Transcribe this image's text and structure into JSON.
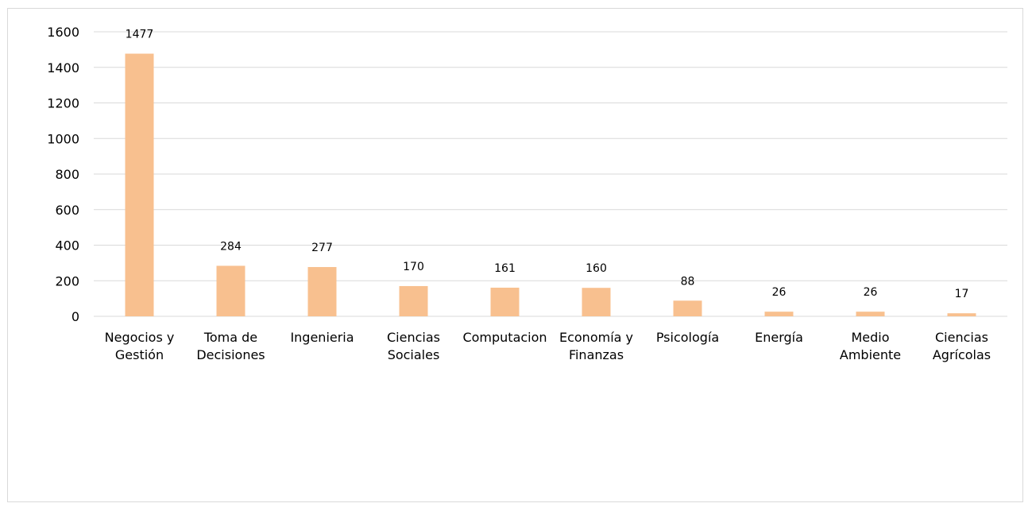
{
  "chart_data": {
    "type": "bar",
    "categories": [
      [
        "Negocios y",
        "Gestión"
      ],
      [
        "Toma de",
        "Decisiones"
      ],
      [
        "Ingenieria"
      ],
      [
        "Ciencias",
        "Sociales"
      ],
      [
        "Computacion"
      ],
      [
        "Economía y",
        "Finanzas"
      ],
      [
        "Psicología"
      ],
      [
        "Energía"
      ],
      [
        "Medio",
        "Ambiente"
      ],
      [
        "Ciencias",
        "Agrícolas"
      ]
    ],
    "values": [
      1477,
      284,
      277,
      170,
      161,
      160,
      88,
      26,
      26,
      17
    ],
    "data_labels": [
      "1477",
      "284",
      "277",
      "170",
      "161",
      "160",
      "88",
      "26",
      "26",
      "17"
    ],
    "y_ticks": [
      "0",
      "200",
      "400",
      "600",
      "800",
      "1000",
      "1200",
      "1400",
      "1600"
    ],
    "ylim": [
      0,
      1600
    ],
    "title": "",
    "xlabel": "",
    "ylabel": "",
    "grid": true,
    "bar_color": "#F8C08F",
    "grid_color": "#D9D9D9"
  }
}
